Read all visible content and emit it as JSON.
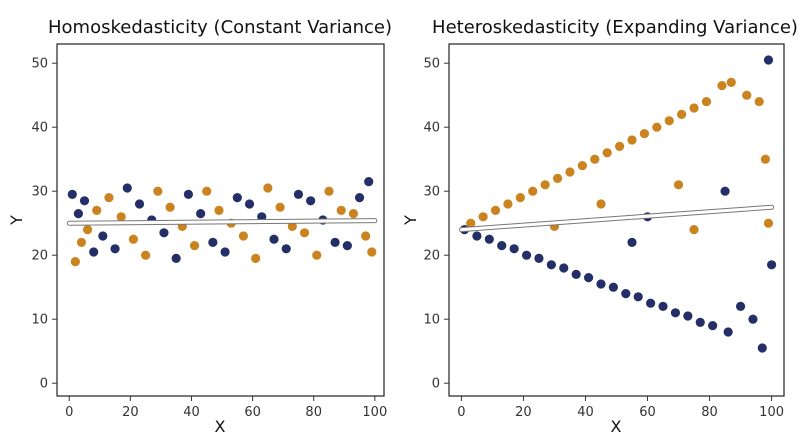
{
  "chart_data": [
    {
      "type": "scatter",
      "title": "Homoskedasticity (Constant Variance)",
      "xlabel": "X",
      "ylabel": "Y",
      "xlim": [
        -4,
        103
      ],
      "ylim": [
        -2,
        53
      ],
      "xticks": [
        "0",
        "20",
        "40",
        "60",
        "80",
        "100"
      ],
      "yticks": [
        "0",
        "10",
        "20",
        "30",
        "40",
        "50"
      ],
      "grid": false,
      "legend": "none",
      "point_colors": [
        "#17245e",
        "#c77c12"
      ],
      "fit_line": {
        "x": [
          0,
          100
        ],
        "y": [
          25.0,
          25.4
        ],
        "color": "#ffffff"
      },
      "points": [
        {
          "x": 1,
          "y": 29.5
        },
        {
          "x": 2,
          "y": 19
        },
        {
          "x": 3,
          "y": 26.5
        },
        {
          "x": 4,
          "y": 22
        },
        {
          "x": 5,
          "y": 28.5
        },
        {
          "x": 6,
          "y": 24
        },
        {
          "x": 8,
          "y": 20.5
        },
        {
          "x": 9,
          "y": 27
        },
        {
          "x": 11,
          "y": 23
        },
        {
          "x": 13,
          "y": 29
        },
        {
          "x": 15,
          "y": 21
        },
        {
          "x": 17,
          "y": 26
        },
        {
          "x": 19,
          "y": 30.5
        },
        {
          "x": 21,
          "y": 22.5
        },
        {
          "x": 23,
          "y": 28
        },
        {
          "x": 25,
          "y": 20
        },
        {
          "x": 27,
          "y": 25.5
        },
        {
          "x": 29,
          "y": 30
        },
        {
          "x": 31,
          "y": 23.5
        },
        {
          "x": 33,
          "y": 27.5
        },
        {
          "x": 35,
          "y": 19.5
        },
        {
          "x": 37,
          "y": 24.5
        },
        {
          "x": 39,
          "y": 29.5
        },
        {
          "x": 41,
          "y": 21.5
        },
        {
          "x": 43,
          "y": 26.5
        },
        {
          "x": 45,
          "y": 30
        },
        {
          "x": 47,
          "y": 22
        },
        {
          "x": 49,
          "y": 27
        },
        {
          "x": 51,
          "y": 20.5
        },
        {
          "x": 53,
          "y": 25
        },
        {
          "x": 55,
          "y": 29
        },
        {
          "x": 57,
          "y": 23
        },
        {
          "x": 59,
          "y": 28
        },
        {
          "x": 61,
          "y": 19.5
        },
        {
          "x": 63,
          "y": 26
        },
        {
          "x": 65,
          "y": 30.5
        },
        {
          "x": 67,
          "y": 22.5
        },
        {
          "x": 69,
          "y": 27.5
        },
        {
          "x": 71,
          "y": 21
        },
        {
          "x": 73,
          "y": 24.5
        },
        {
          "x": 75,
          "y": 29.5
        },
        {
          "x": 77,
          "y": 23.5
        },
        {
          "x": 79,
          "y": 28.5
        },
        {
          "x": 81,
          "y": 20
        },
        {
          "x": 83,
          "y": 25.5
        },
        {
          "x": 85,
          "y": 30
        },
        {
          "x": 87,
          "y": 22
        },
        {
          "x": 89,
          "y": 27
        },
        {
          "x": 91,
          "y": 21.5
        },
        {
          "x": 93,
          "y": 26.5
        },
        {
          "x": 95,
          "y": 29
        },
        {
          "x": 97,
          "y": 23
        },
        {
          "x": 98,
          "y": 31.5
        },
        {
          "x": 99,
          "y": 20.5
        }
      ]
    },
    {
      "type": "scatter",
      "title": "Heteroskedasticity (Expanding Variance)",
      "xlabel": "X",
      "ylabel": "Y",
      "xlim": [
        -4,
        104
      ],
      "ylim": [
        -2,
        53
      ],
      "xticks": [
        "0",
        "20",
        "40",
        "60",
        "80",
        "100"
      ],
      "yticks": [
        "0",
        "10",
        "20",
        "30",
        "40",
        "50"
      ],
      "grid": false,
      "legend": "none",
      "point_colors": [
        "#17245e",
        "#c77c12"
      ],
      "fit_line": {
        "x": [
          0,
          100
        ],
        "y": [
          24.0,
          27.5
        ],
        "color": "#ffffff"
      },
      "points": [
        {
          "x": 1,
          "y": 24
        },
        {
          "x": 3,
          "y": 25
        },
        {
          "x": 5,
          "y": 23
        },
        {
          "x": 7,
          "y": 26
        },
        {
          "x": 9,
          "y": 22.5
        },
        {
          "x": 11,
          "y": 27
        },
        {
          "x": 13,
          "y": 21.5
        },
        {
          "x": 15,
          "y": 28
        },
        {
          "x": 17,
          "y": 21
        },
        {
          "x": 19,
          "y": 29
        },
        {
          "x": 21,
          "y": 20
        },
        {
          "x": 23,
          "y": 30
        },
        {
          "x": 25,
          "y": 19.5
        },
        {
          "x": 27,
          "y": 31
        },
        {
          "x": 29,
          "y": 18.5
        },
        {
          "x": 31,
          "y": 32
        },
        {
          "x": 33,
          "y": 18
        },
        {
          "x": 35,
          "y": 33
        },
        {
          "x": 37,
          "y": 17
        },
        {
          "x": 39,
          "y": 34
        },
        {
          "x": 41,
          "y": 16.5
        },
        {
          "x": 43,
          "y": 35
        },
        {
          "x": 45,
          "y": 15.5
        },
        {
          "x": 47,
          "y": 36
        },
        {
          "x": 49,
          "y": 15
        },
        {
          "x": 51,
          "y": 37
        },
        {
          "x": 53,
          "y": 14
        },
        {
          "x": 55,
          "y": 38
        },
        {
          "x": 57,
          "y": 13.5
        },
        {
          "x": 59,
          "y": 39
        },
        {
          "x": 61,
          "y": 12.5
        },
        {
          "x": 63,
          "y": 40
        },
        {
          "x": 65,
          "y": 12
        },
        {
          "x": 67,
          "y": 41
        },
        {
          "x": 69,
          "y": 11
        },
        {
          "x": 71,
          "y": 42
        },
        {
          "x": 73,
          "y": 10.5
        },
        {
          "x": 75,
          "y": 43
        },
        {
          "x": 77,
          "y": 9.5
        },
        {
          "x": 79,
          "y": 44
        },
        {
          "x": 81,
          "y": 9
        },
        {
          "x": 84,
          "y": 46.5
        },
        {
          "x": 86,
          "y": 8
        },
        {
          "x": 87,
          "y": 47
        },
        {
          "x": 90,
          "y": 12
        },
        {
          "x": 92,
          "y": 45
        },
        {
          "x": 94,
          "y": 10
        },
        {
          "x": 96,
          "y": 44
        },
        {
          "x": 97,
          "y": 5.5
        },
        {
          "x": 98,
          "y": 35
        },
        {
          "x": 99,
          "y": 50.5
        },
        {
          "x": 99,
          "y": 25
        },
        {
          "x": 100,
          "y": 18.5
        },
        {
          "x": 45,
          "y": 28
        },
        {
          "x": 60,
          "y": 26
        },
        {
          "x": 75,
          "y": 24
        },
        {
          "x": 85,
          "y": 30
        },
        {
          "x": 30,
          "y": 24.5
        },
        {
          "x": 55,
          "y": 22
        },
        {
          "x": 70,
          "y": 31
        }
      ]
    }
  ]
}
